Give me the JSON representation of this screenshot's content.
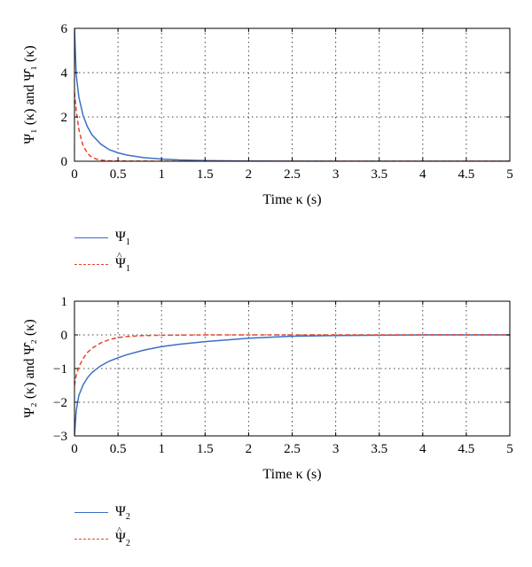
{
  "chart_data": [
    {
      "type": "line",
      "xlabel": "Time κ (s)",
      "ylabel": "Ψ₁ (κ) and Ψ̂₁ (κ)",
      "xlim": [
        0,
        5
      ],
      "ylim": [
        0,
        6
      ],
      "xticks": [
        "0",
        "0.5",
        "1",
        "1.5",
        "2",
        "2.5",
        "3",
        "3.5",
        "4",
        "4.5",
        "5"
      ],
      "yticks": [
        "0",
        "2",
        "4",
        "6"
      ],
      "grid": true,
      "legend_position": "below",
      "series": [
        {
          "name": "Ψ₁",
          "color": "#3b6fc4",
          "style": "solid",
          "x": [
            0,
            0.02,
            0.05,
            0.1,
            0.15,
            0.2,
            0.3,
            0.4,
            0.5,
            0.6,
            0.8,
            1.0,
            1.2,
            1.5,
            2.0,
            2.5,
            3,
            3.5,
            4,
            4.5,
            5
          ],
          "y": [
            6.0,
            3.9,
            2.9,
            2.05,
            1.55,
            1.2,
            0.78,
            0.52,
            0.38,
            0.28,
            0.16,
            0.1,
            0.06,
            0.03,
            0.01,
            0.005,
            0.0,
            0.0,
            0.0,
            0.0,
            0.0
          ]
        },
        {
          "name": "Ψ̂₁",
          "color": "#e8432c",
          "style": "dashed",
          "x": [
            0,
            0.02,
            0.05,
            0.08,
            0.1,
            0.15,
            0.2,
            0.25,
            0.3,
            0.4,
            0.5,
            1.0,
            2,
            3,
            4,
            5
          ],
          "y": [
            3.1,
            2.3,
            1.45,
            0.95,
            0.7,
            0.35,
            0.18,
            0.1,
            0.05,
            0.02,
            0.01,
            0.0,
            0.0,
            0.0,
            0.0,
            0.0
          ]
        }
      ]
    },
    {
      "type": "line",
      "xlabel": "Time κ (s)",
      "ylabel": "Ψ₂ (κ) and Ψ̂₂ (κ)",
      "xlim": [
        0,
        5
      ],
      "ylim": [
        -3,
        1
      ],
      "xticks": [
        "0",
        "0.5",
        "1",
        "1.5",
        "2",
        "2.5",
        "3",
        "3.5",
        "4",
        "4.5",
        "5"
      ],
      "yticks": [
        "1",
        "0",
        "−1",
        "−2",
        "−3"
      ],
      "grid": true,
      "legend_position": "below",
      "series": [
        {
          "name": "Ψ₂",
          "color": "#3b6fc4",
          "style": "solid",
          "x": [
            0,
            0.02,
            0.05,
            0.1,
            0.15,
            0.2,
            0.3,
            0.4,
            0.5,
            0.6,
            0.8,
            1.0,
            1.2,
            1.5,
            2.0,
            2.5,
            3,
            3.5,
            4,
            4.5,
            5
          ],
          "y": [
            -3.0,
            -2.25,
            -1.8,
            -1.48,
            -1.27,
            -1.12,
            -0.92,
            -0.78,
            -0.68,
            -0.59,
            -0.45,
            -0.35,
            -0.28,
            -0.2,
            -0.1,
            -0.04,
            -0.02,
            -0.01,
            0.0,
            0.0,
            0.0
          ]
        },
        {
          "name": "Ψ̂₂",
          "color": "#e8432c",
          "style": "dashed",
          "x": [
            0,
            0.02,
            0.05,
            0.1,
            0.15,
            0.2,
            0.3,
            0.4,
            0.5,
            0.6,
            0.8,
            1.0,
            1.5,
            2,
            3,
            4,
            5
          ],
          "y": [
            -1.5,
            -1.2,
            -0.95,
            -0.7,
            -0.52,
            -0.4,
            -0.24,
            -0.14,
            -0.08,
            -0.05,
            -0.02,
            -0.01,
            0.0,
            0.0,
            0.0,
            0.0,
            0.0
          ]
        }
      ]
    }
  ],
  "legends": [
    {
      "items": [
        {
          "symbol": "Ψ",
          "sub": "1",
          "hat": false,
          "color": "#3b6fc4",
          "style": "solid"
        },
        {
          "symbol": "Ψ",
          "sub": "1",
          "hat": true,
          "color": "#e8432c",
          "style": "dashed"
        }
      ]
    },
    {
      "items": [
        {
          "symbol": "Ψ",
          "sub": "2",
          "hat": false,
          "color": "#3b6fc4",
          "style": "solid"
        },
        {
          "symbol": "Ψ",
          "sub": "2",
          "hat": true,
          "color": "#e8432c",
          "style": "dashed"
        }
      ]
    }
  ]
}
